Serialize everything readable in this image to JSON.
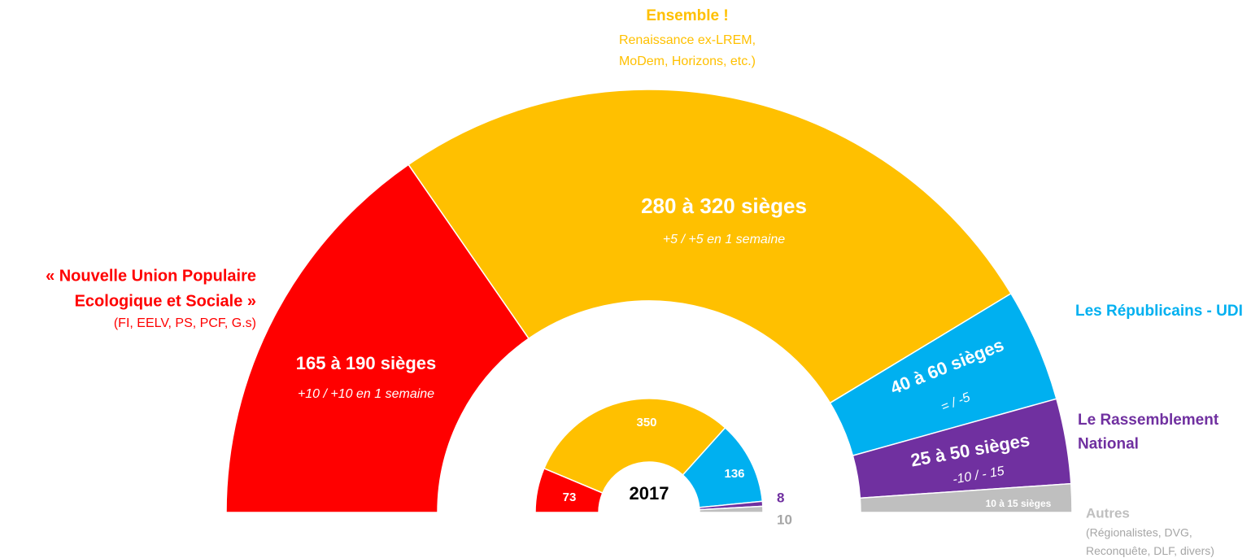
{
  "chart_data": {
    "type": "hemicycle",
    "series": [
      {
        "name": [
          "« Nouvelle Union Populaire",
          "Ecologique et Sociale »"
        ],
        "detail": [
          "(FI, EELV, PS, PCF, G.s)"
        ],
        "color": "#ff0000",
        "seats_label": "165 à 190 sièges",
        "change": "+10 / +10 en 1 semaine",
        "value": 177.5
      },
      {
        "name": [
          "Ensemble !"
        ],
        "detail": [
          "Renaissance ex-LREM,",
          "MoDem, Horizons, etc.)"
        ],
        "color": "#ffc000",
        "seats_label": "280 à 320 sièges",
        "change": "+5 / +5 en 1 semaine",
        "value": 300
      },
      {
        "name": [
          "Les Républicains - UDI"
        ],
        "detail": [],
        "color": "#00b0f0",
        "seats_label": "40 à 60 sièges",
        "change": "= / -5",
        "value": 50
      },
      {
        "name": [
          "Le Rassemblement",
          "National"
        ],
        "detail": [],
        "color": "#7030a0",
        "seats_label": "25 à 50 sièges",
        "change": "-10 / - 15",
        "value": 37.5
      },
      {
        "name": [
          "Autres"
        ],
        "detail": [
          "(Régionalistes, DVG,",
          "Reconquête, DLF, divers)"
        ],
        "color": "#bfbfbf",
        "seats_label": "10 à 15 sièges",
        "change": null,
        "value": 12.5
      }
    ],
    "inner": {
      "title": "2017",
      "values": [
        73,
        350,
        136,
        8,
        10
      ],
      "colors": [
        "#ff0000",
        "#ffc000",
        "#00b0f0",
        "#7030a0",
        "#bfbfbf"
      ]
    }
  }
}
